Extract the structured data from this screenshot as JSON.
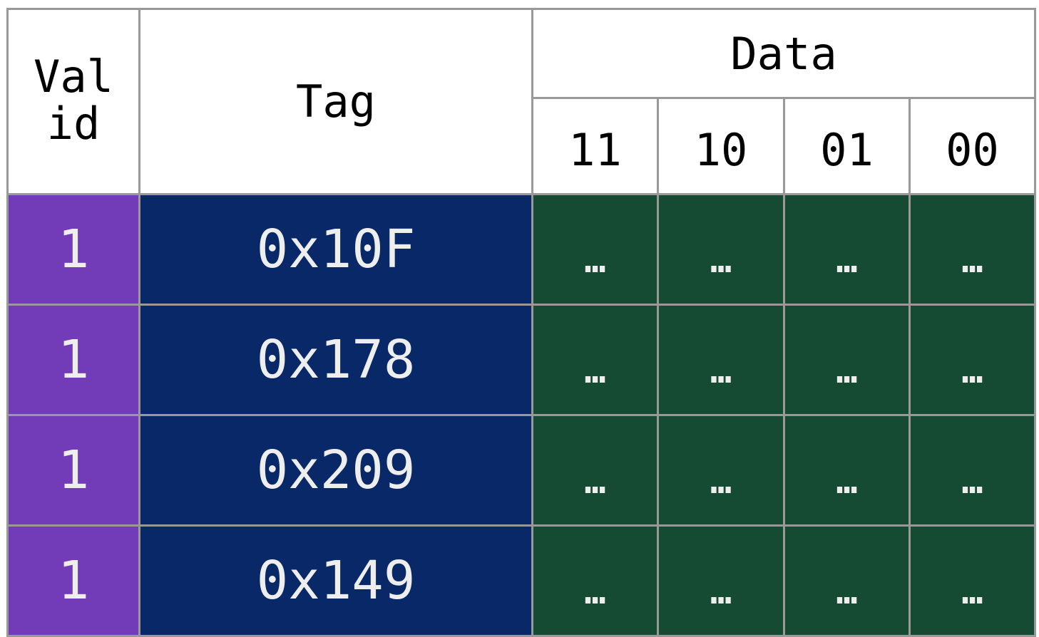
{
  "header": {
    "valid": "Valid",
    "tag": "Tag",
    "data": "Data",
    "offsets": [
      "11",
      "10",
      "01",
      "00"
    ]
  },
  "rows": [
    {
      "valid": "1",
      "tag": "0x10F",
      "data": [
        "…",
        "…",
        "…",
        "…"
      ]
    },
    {
      "valid": "1",
      "tag": "0x178",
      "data": [
        "…",
        "…",
        "…",
        "…"
      ]
    },
    {
      "valid": "1",
      "tag": "0x209",
      "data": [
        "…",
        "…",
        "…",
        "…"
      ]
    },
    {
      "valid": "1",
      "tag": "0x149",
      "data": [
        "…",
        "…",
        "…",
        "…"
      ]
    }
  ],
  "colors": {
    "valid": "#723bb8",
    "tag": "#082868",
    "data": "#154b33",
    "grid": "#999999"
  }
}
